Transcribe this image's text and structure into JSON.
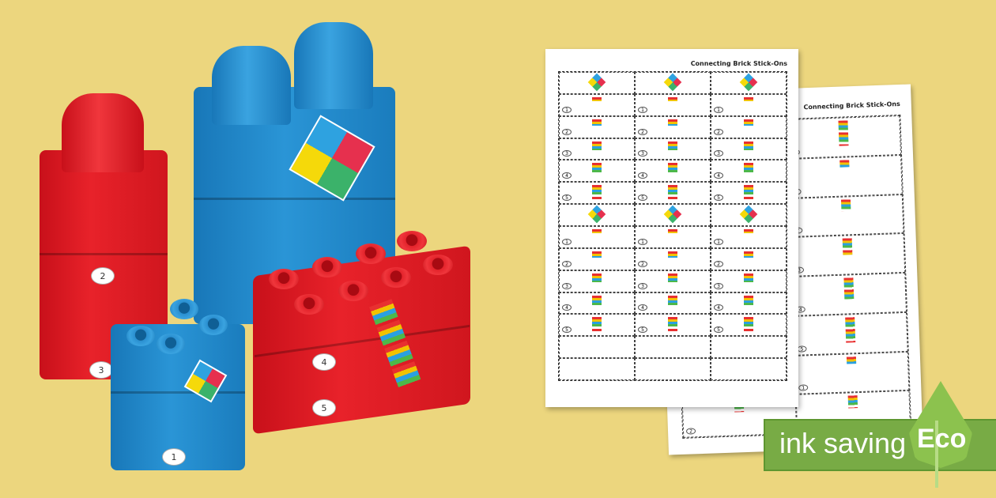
{
  "product": {
    "sheet_title": "Connecting Brick Stick-Ons",
    "number_labels": [
      "1",
      "2",
      "3",
      "4",
      "5"
    ],
    "badge": {
      "text": "ink saving",
      "eco_label": "Eco"
    }
  },
  "colors": {
    "background": "#ecd67e",
    "red_brick": "#e0202a",
    "blue_brick": "#2a8fd0",
    "badge_green": "#78ab45"
  }
}
